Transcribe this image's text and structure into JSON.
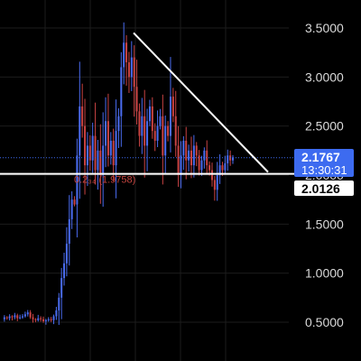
{
  "chart_data": {
    "type": "candlestick",
    "symbol_axis": {
      "ticks": [
        "3.5000",
        "3.0000",
        "2.5000",
        "2.0000",
        "1.5000",
        "1.0000",
        "0.5000"
      ],
      "tick_values": [
        3.5,
        3.0,
        2.5,
        2.0,
        1.5,
        1.0,
        0.5
      ],
      "ylim": [
        0.32,
        3.75
      ]
    },
    "price_series": [
      0.53,
      0.55,
      0.54,
      0.56,
      0.55,
      0.57,
      0.54,
      0.55,
      0.56,
      0.58,
      0.6,
      0.55,
      0.53,
      0.52,
      0.54,
      0.53,
      0.51,
      0.52,
      0.53,
      0.52,
      0.56,
      0.62,
      0.75,
      0.95,
      1.1,
      1.3,
      1.55,
      1.75,
      1.7,
      2.2,
      2.7,
      2.5,
      2.1,
      2.3,
      2.15,
      2.4,
      2.05,
      2.25,
      2.0,
      2.3,
      2.55,
      2.2,
      2.35,
      2.1,
      2.45,
      2.6,
      3.1,
      3.35,
      3.15,
      3.0,
      3.2,
      2.9,
      2.65,
      2.4,
      2.6,
      2.3,
      2.55,
      2.7,
      2.45,
      2.35,
      2.5,
      2.6,
      2.2,
      2.5,
      2.4,
      2.8,
      2.6,
      2.3,
      2.0,
      2.2,
      2.35,
      2.15,
      2.25,
      2.1,
      2.3,
      2.2,
      2.05,
      2.15,
      2.25,
      2.1,
      2.05,
      1.95,
      1.85,
      2.0,
      2.1,
      2.05,
      2.12,
      2.2,
      2.15,
      2.18
    ],
    "current_price": {
      "value": "2.1767",
      "countdown": "13:30:31",
      "color": "#3d6bf0"
    },
    "horizontal_level": {
      "value": 2.0126,
      "label": "2.0126",
      "color": "#ffffff"
    },
    "low_marker_text": "0.2₃₄ (1.9758)",
    "trendline": {
      "from_value": 3.45,
      "to_value": 2.0126,
      "color": "#ffffff"
    },
    "colors": {
      "up": "#4a6cf0",
      "down": "#c94343",
      "background": "#000000",
      "grid": "#1c1c1c"
    }
  }
}
